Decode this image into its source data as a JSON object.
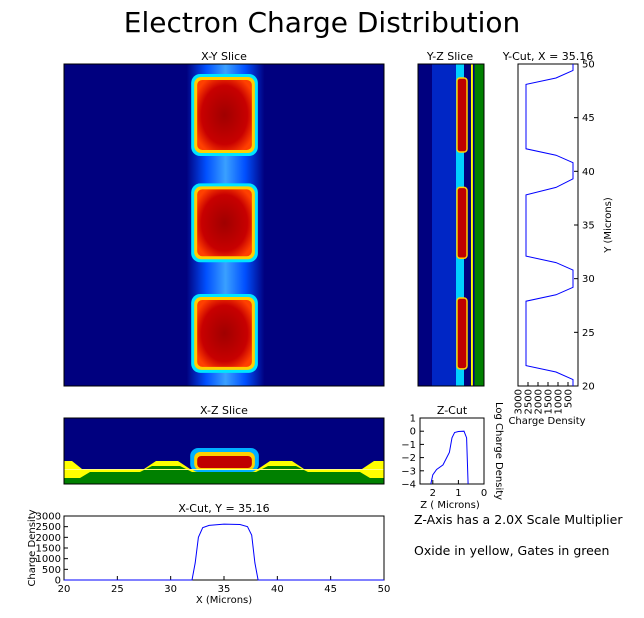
{
  "figure": {
    "title": "Electron Charge Distribution",
    "note_scale": "Z-Axis has a 2.0X Scale Multiplier",
    "note_colors": "Oxide in yellow, Gates in green"
  },
  "colors": {
    "background": "#00007f",
    "oxide": "#ffff00",
    "gate": "#008000",
    "line": "#0000ff",
    "halo": "#1e90ff",
    "core": "#c00000",
    "rim": "#ff6a00"
  },
  "panels": {
    "xy": {
      "title": "X-Y Slice"
    },
    "yz": {
      "title": "Y-Z Slice"
    },
    "xz": {
      "title": "X-Z Slice"
    },
    "ycut": {
      "title": "Y-Cut, X = 35.16",
      "xlabel": "Charge Density",
      "ylabel": "Y (Microns)",
      "xticks": [
        "3000",
        "2500",
        "2000",
        "1500",
        "1000",
        "500"
      ],
      "yticks": [
        "20",
        "25",
        "30",
        "35",
        "40",
        "45",
        "50"
      ]
    },
    "zcut": {
      "title": "Z-Cut",
      "xlabel": "Z ( Microns)",
      "ylabel": "Log Charge Density",
      "xticks": [
        "2",
        "1",
        "0"
      ],
      "yticks": [
        "1",
        "0",
        "−1",
        "−2",
        "−3",
        "−4"
      ]
    },
    "xcut": {
      "title": "X-Cut, Y = 35.16",
      "xlabel": "X (Microns)",
      "ylabel": "Charge Density",
      "xticks": [
        "20",
        "25",
        "30",
        "35",
        "40",
        "45",
        "50"
      ],
      "yticks": [
        "0",
        "500",
        "1000",
        "1500",
        "2000",
        "2500",
        "3000"
      ]
    }
  },
  "chart_data": [
    {
      "type": "heatmap",
      "title": "X-Y Slice",
      "x_range": [
        20,
        50
      ],
      "y_range": [
        20,
        50
      ],
      "stripe_x": [
        31.5,
        38.8
      ],
      "high_regions": [
        {
          "x": [
            32.3,
            37.8
          ],
          "y": [
            41.8,
            48.7
          ]
        },
        {
          "x": [
            32.3,
            37.8
          ],
          "y": [
            31.9,
            38.5
          ]
        },
        {
          "x": [
            32.3,
            37.8
          ],
          "y": [
            21.6,
            28.2
          ]
        }
      ]
    },
    {
      "type": "heatmap",
      "title": "Y-Z Slice",
      "y_range": [
        20,
        50
      ],
      "z_range": [
        3.15,
        0
      ],
      "oxide_z": [
        0.62,
        0.53
      ],
      "gate_z": [
        0.45,
        0
      ],
      "high_regions_y": [
        [
          41.8,
          48.7
        ],
        [
          31.9,
          38.5
        ],
        [
          21.6,
          28.2
        ]
      ]
    },
    {
      "type": "heatmap",
      "title": "X-Z Slice",
      "x_range": [
        20,
        50
      ],
      "core_x": [
        32.3,
        37.8
      ]
    },
    {
      "type": "line",
      "title": "Y-Cut, X = 35.16",
      "xlabel": "Charge Density",
      "ylabel": "Y (Microns)",
      "xlim": [
        3000,
        0
      ],
      "ylim": [
        20,
        50
      ],
      "points": [
        [
          250,
          20
        ],
        [
          250,
          20.6
        ],
        [
          1100,
          21.3
        ],
        [
          2600,
          21.9
        ],
        [
          2600,
          27.9
        ],
        [
          1100,
          28.5
        ],
        [
          250,
          29.2
        ],
        [
          250,
          30.8
        ],
        [
          1100,
          31.5
        ],
        [
          2600,
          32.1
        ],
        [
          2600,
          37.8
        ],
        [
          1100,
          38.5
        ],
        [
          250,
          39.3
        ],
        [
          250,
          40.8
        ],
        [
          1100,
          41.5
        ],
        [
          2600,
          42.1
        ],
        [
          2600,
          48.1
        ],
        [
          1100,
          48.7
        ],
        [
          250,
          49.4
        ],
        [
          250,
          50
        ]
      ]
    },
    {
      "type": "line",
      "title": "Z-Cut",
      "xlabel": "Z ( Microns)",
      "ylabel": "Log Charge Density",
      "xlim": [
        2.5,
        0
      ],
      "ylim": [
        -4,
        1
      ],
      "points": [
        [
          2.08,
          -4
        ],
        [
          2.0,
          -3.3
        ],
        [
          1.85,
          -2.9
        ],
        [
          1.6,
          -2.55
        ],
        [
          1.35,
          -1.6
        ],
        [
          1.25,
          -0.5
        ],
        [
          1.15,
          -0.1
        ],
        [
          1.0,
          -0.02
        ],
        [
          0.78,
          0.0
        ],
        [
          0.68,
          -0.5
        ],
        [
          0.62,
          -4
        ]
      ]
    },
    {
      "type": "line",
      "title": "X-Cut, Y = 35.16",
      "xlabel": "X (Microns)",
      "ylabel": "Charge Density",
      "xlim": [
        20,
        50
      ],
      "ylim": [
        0,
        3000
      ],
      "points": [
        [
          20,
          0
        ],
        [
          32.0,
          0
        ],
        [
          32.3,
          800
        ],
        [
          32.6,
          2000
        ],
        [
          33.0,
          2450
        ],
        [
          33.6,
          2560
        ],
        [
          35.0,
          2620
        ],
        [
          36.5,
          2600
        ],
        [
          37.2,
          2500
        ],
        [
          37.6,
          2100
        ],
        [
          37.9,
          800
        ],
        [
          38.2,
          0
        ],
        [
          50,
          0
        ]
      ]
    }
  ]
}
